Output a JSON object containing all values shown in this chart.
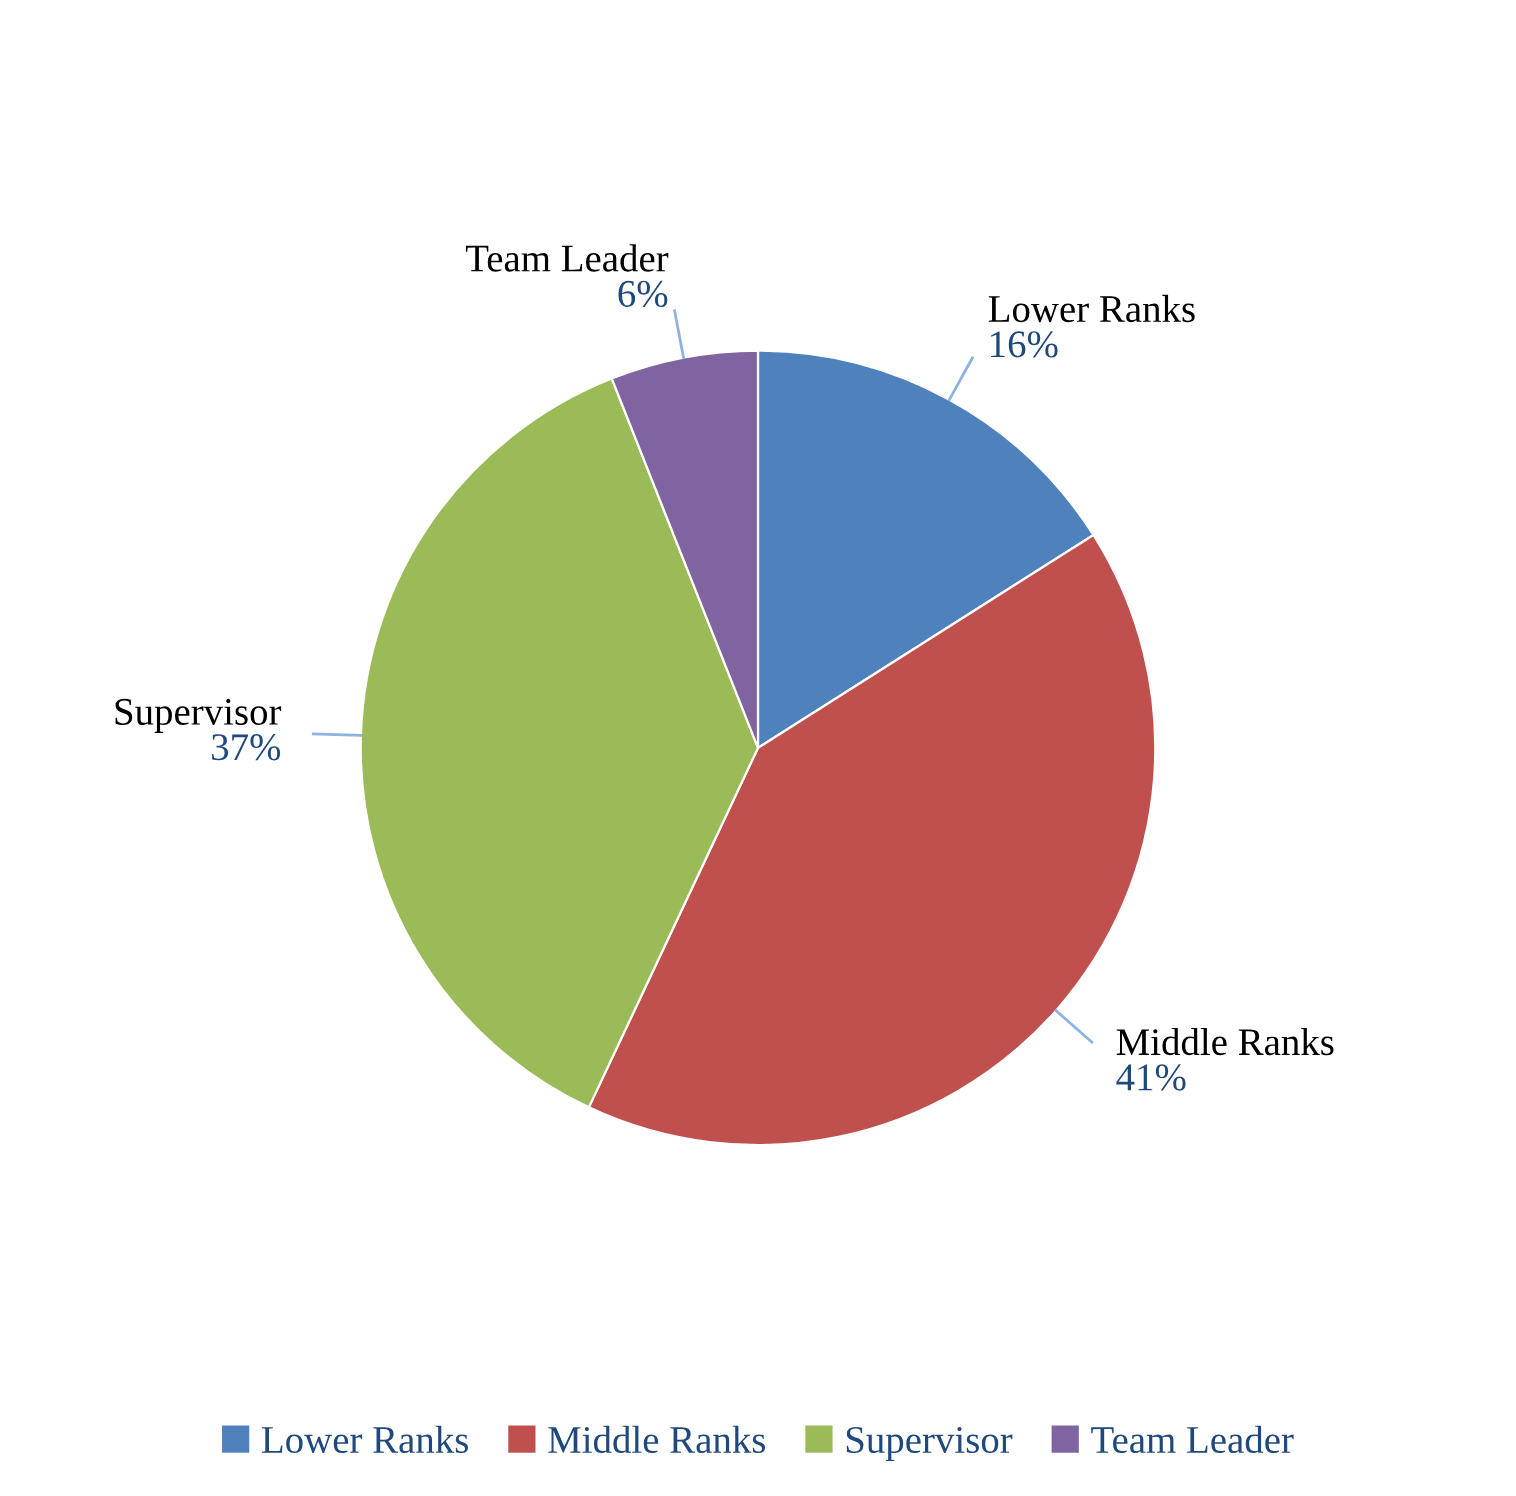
{
  "chart_data": {
    "type": "pie",
    "categories": [
      "Lower Ranks",
      "Middle Ranks",
      "Supervisor",
      "Team Leader"
    ],
    "values": [
      16,
      41,
      37,
      6
    ],
    "value_labels": [
      "16%",
      "41%",
      "37%",
      "6%"
    ],
    "colors": [
      "#4f81bd",
      "#c0504d",
      "#9bbb59",
      "#8064a2"
    ],
    "legend": "bottom"
  }
}
